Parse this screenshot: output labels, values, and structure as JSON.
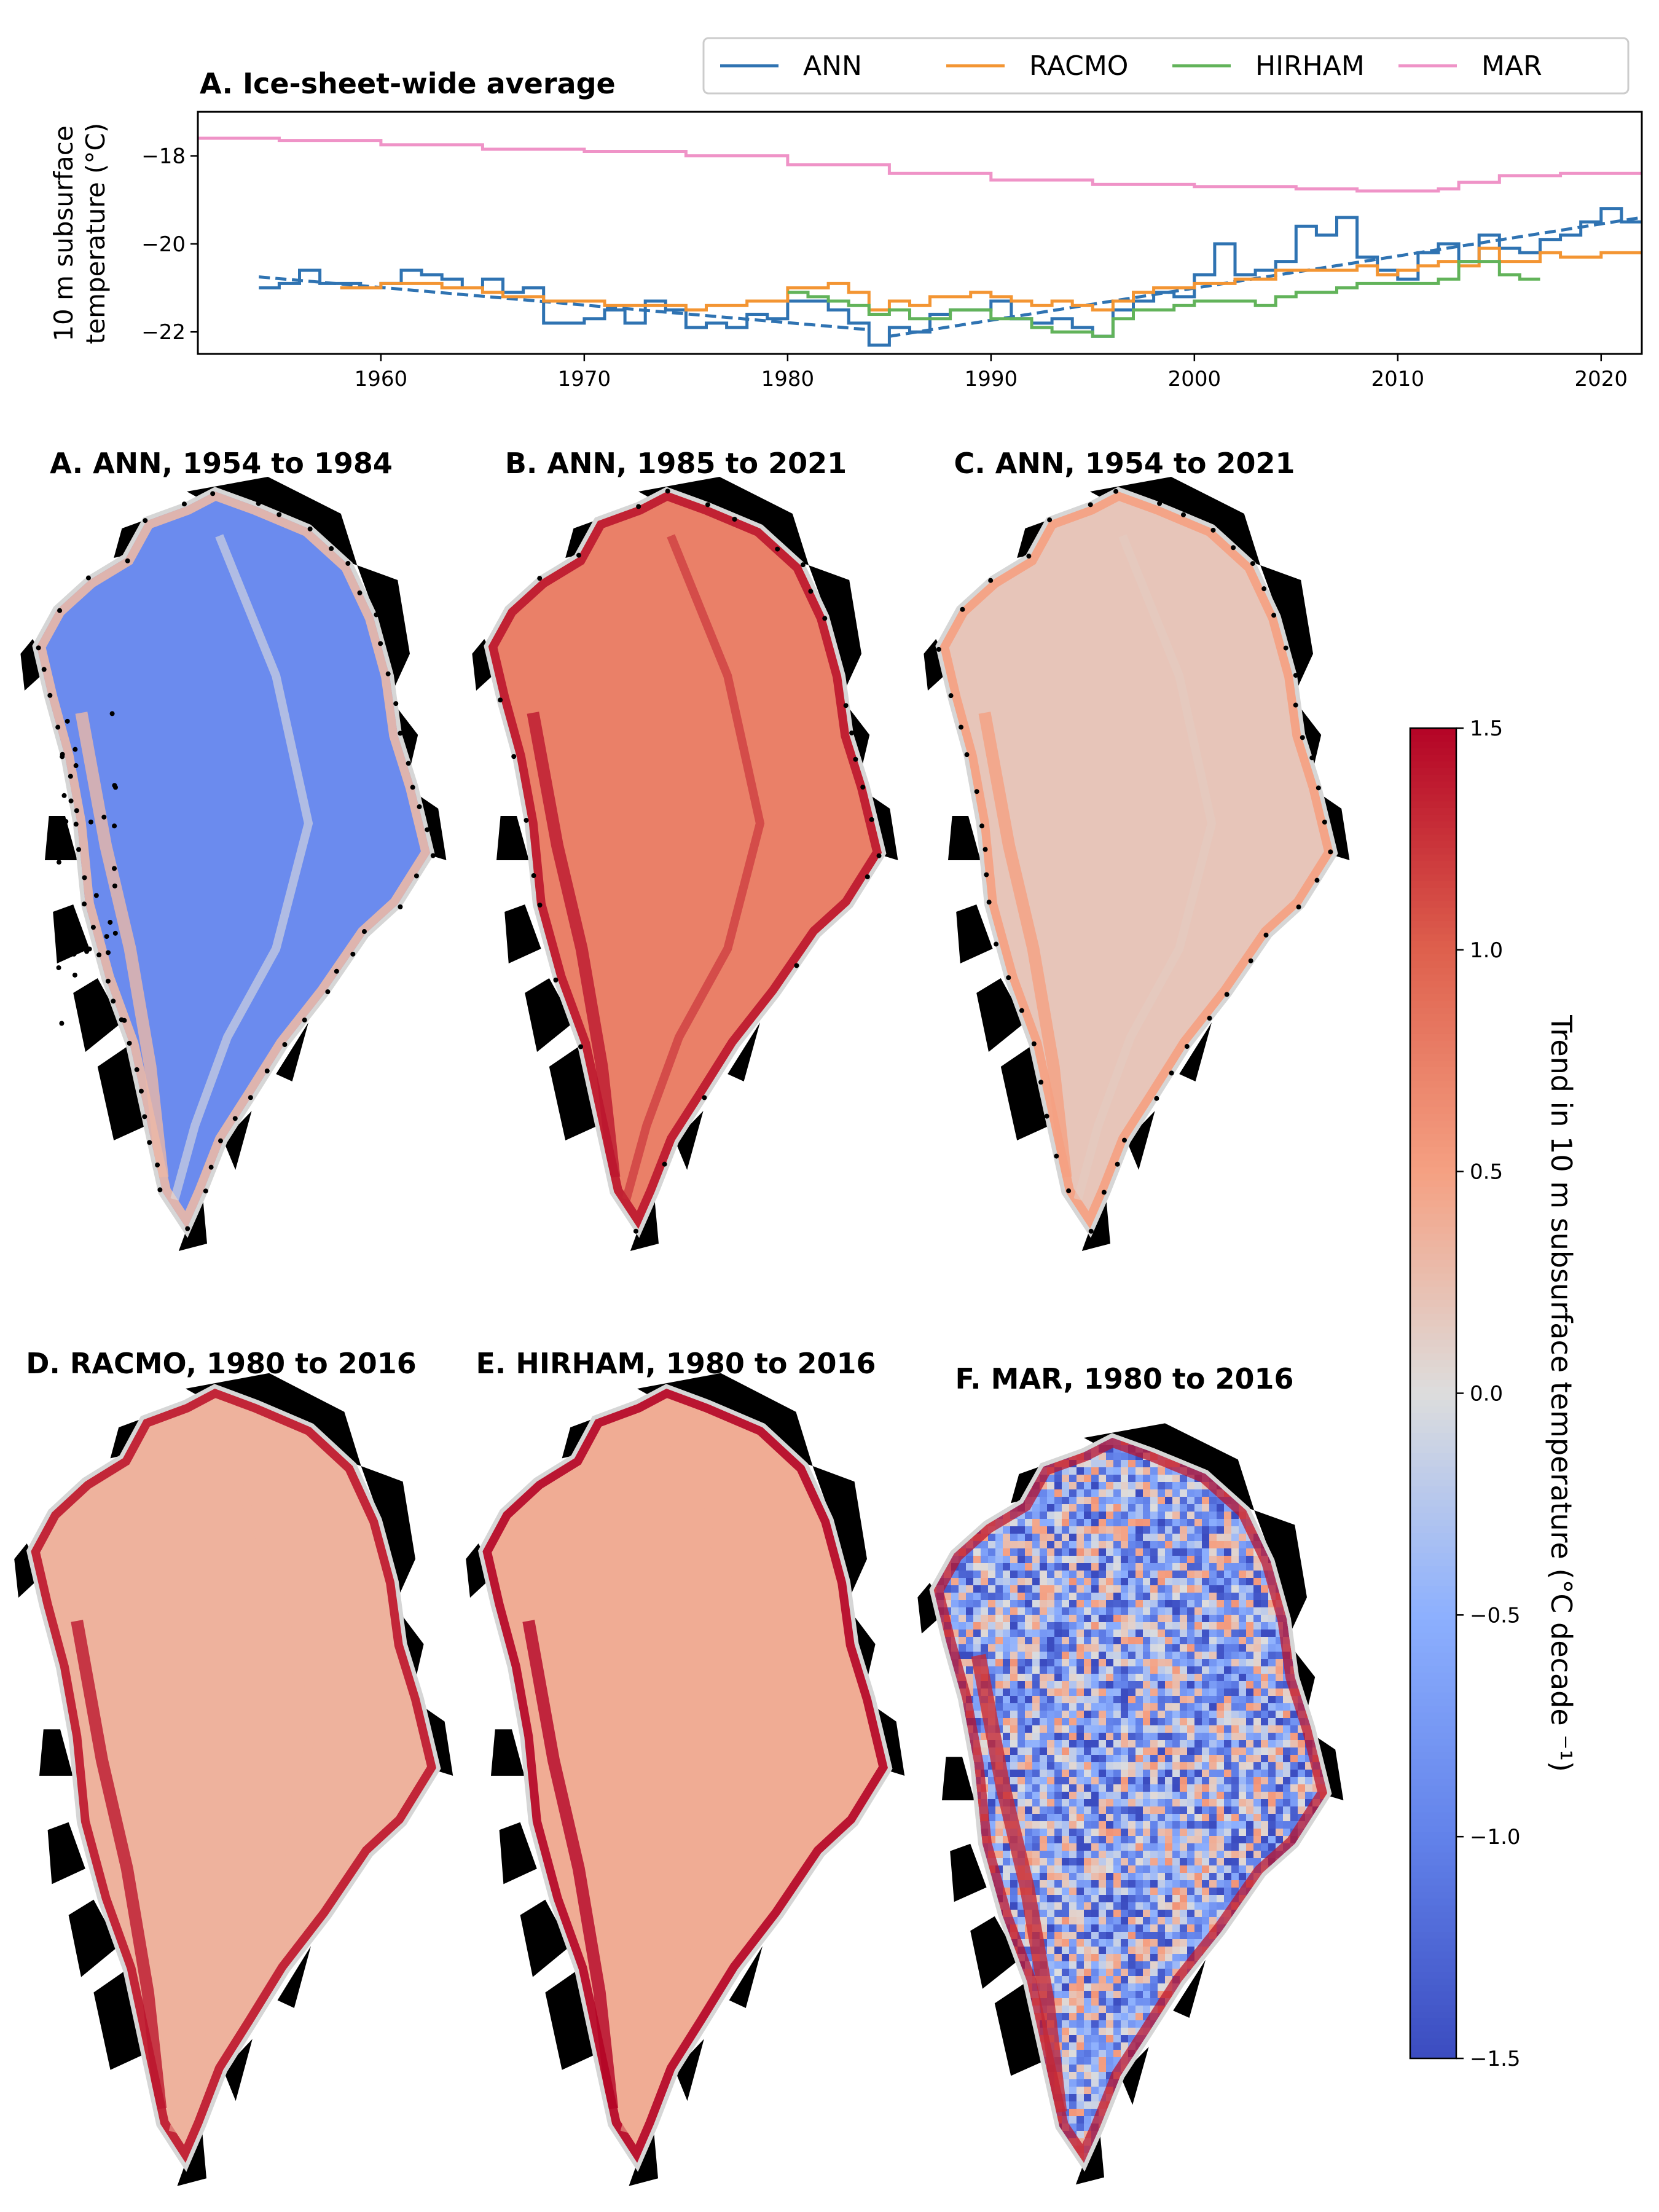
{
  "colors": {
    "ANN": "#2f73b2",
    "RACMO": "#f39533",
    "HIRHAM": "#62b35a",
    "MAR": "#ef93c7",
    "land": "#000000",
    "edge": "#d6d6d6",
    "stipple": "#000000"
  },
  "chart_data": [
    {
      "type": "line",
      "title": "A. Ice-sheet-wide average",
      "ylabel_lines": [
        "10 m subsurface",
        "temperature (°C)"
      ],
      "xlim": [
        1951,
        2022
      ],
      "ylim": [
        -22.5,
        -17.0
      ],
      "xticks": [
        1960,
        1970,
        1980,
        1990,
        2000,
        2010,
        2020
      ],
      "yticks": [
        -18,
        -20,
        -22
      ],
      "ytick_labels": [
        "−18",
        "−20",
        "−22"
      ],
      "legend": {
        "placement": "top-right, above plot",
        "entries": [
          "ANN",
          "RACMO",
          "HIRHAM",
          "MAR"
        ]
      },
      "series": [
        {
          "name": "ANN",
          "style": "step",
          "x": [
            1954,
            1955,
            1956,
            1957,
            1958,
            1959,
            1960,
            1961,
            1962,
            1963,
            1964,
            1965,
            1966,
            1967,
            1968,
            1969,
            1970,
            1971,
            1972,
            1973,
            1974,
            1975,
            1976,
            1977,
            1978,
            1979,
            1980,
            1981,
            1982,
            1983,
            1984,
            1985,
            1986,
            1987,
            1988,
            1989,
            1990,
            1991,
            1992,
            1993,
            1994,
            1995,
            1996,
            1997,
            1998,
            1999,
            2000,
            2001,
            2002,
            2003,
            2004,
            2005,
            2006,
            2007,
            2008,
            2009,
            2010,
            2011,
            2012,
            2013,
            2014,
            2015,
            2016,
            2017,
            2018,
            2019,
            2020,
            2021
          ],
          "y": [
            -21.0,
            -20.9,
            -20.6,
            -20.9,
            -20.9,
            -21.0,
            -20.9,
            -20.6,
            -20.7,
            -20.8,
            -21.0,
            -20.8,
            -21.1,
            -21.0,
            -21.8,
            -21.8,
            -21.7,
            -21.5,
            -21.8,
            -21.3,
            -21.5,
            -21.9,
            -21.8,
            -21.9,
            -21.6,
            -21.7,
            -21.3,
            -21.3,
            -21.5,
            -21.8,
            -22.3,
            -21.9,
            -22.0,
            -21.6,
            -21.5,
            -21.5,
            -21.3,
            -21.7,
            -21.8,
            -21.7,
            -21.9,
            -22.1,
            -21.5,
            -21.3,
            -21.1,
            -21.2,
            -20.7,
            -20.0,
            -20.7,
            -20.6,
            -20.4,
            -19.6,
            -19.8,
            -19.4,
            -20.3,
            -20.6,
            -20.8,
            -20.2,
            -20.0,
            -20.4,
            -19.8,
            -20.1,
            -20.2,
            -19.9,
            -19.8,
            -19.5,
            -19.2,
            -19.5
          ]
        },
        {
          "name": "ANN trend",
          "style": "dashed",
          "legend": false,
          "x": [
            1954,
            1984,
            1985,
            2022
          ],
          "y": [
            -20.75,
            -21.95,
            -22.1,
            -19.4
          ]
        },
        {
          "name": "RACMO",
          "style": "step",
          "x": [
            1958,
            1959,
            1960,
            1961,
            1962,
            1963,
            1964,
            1965,
            1966,
            1967,
            1968,
            1969,
            1970,
            1971,
            1972,
            1973,
            1974,
            1975,
            1976,
            1977,
            1978,
            1979,
            1980,
            1981,
            1982,
            1983,
            1984,
            1985,
            1986,
            1987,
            1988,
            1989,
            1990,
            1991,
            1992,
            1993,
            1994,
            1995,
            1996,
            1997,
            1998,
            1999,
            2000,
            2001,
            2002,
            2003,
            2004,
            2005,
            2006,
            2007,
            2008,
            2009,
            2010,
            2011,
            2012,
            2013,
            2014,
            2015,
            2016,
            2017,
            2018,
            2019,
            2020,
            2021
          ],
          "y": [
            -21.0,
            -21.0,
            -20.9,
            -20.9,
            -20.9,
            -21.0,
            -21.0,
            -21.1,
            -21.2,
            -21.2,
            -21.3,
            -21.3,
            -21.3,
            -21.4,
            -21.4,
            -21.4,
            -21.4,
            -21.5,
            -21.4,
            -21.4,
            -21.3,
            -21.3,
            -21.0,
            -21.0,
            -20.9,
            -21.1,
            -21.5,
            -21.3,
            -21.4,
            -21.2,
            -21.2,
            -21.1,
            -21.2,
            -21.3,
            -21.4,
            -21.3,
            -21.4,
            -21.5,
            -21.3,
            -21.1,
            -21.0,
            -21.0,
            -20.9,
            -20.9,
            -20.8,
            -20.8,
            -20.6,
            -20.6,
            -20.6,
            -20.6,
            -20.5,
            -20.7,
            -20.6,
            -20.5,
            -20.4,
            -20.5,
            -20.1,
            -20.4,
            -20.4,
            -20.2,
            -20.3,
            -20.3,
            -20.2,
            -20.2
          ]
        },
        {
          "name": "HIRHAM",
          "style": "step",
          "x": [
            1980,
            1981,
            1982,
            1983,
            1984,
            1985,
            1986,
            1987,
            1988,
            1989,
            1990,
            1991,
            1992,
            1993,
            1994,
            1995,
            1996,
            1997,
            1998,
            1999,
            2000,
            2001,
            2002,
            2003,
            2004,
            2005,
            2006,
            2007,
            2008,
            2009,
            2010,
            2011,
            2012,
            2013,
            2014,
            2015,
            2016
          ],
          "y": [
            -21.1,
            -21.2,
            -21.3,
            -21.4,
            -21.6,
            -21.5,
            -21.7,
            -21.7,
            -21.5,
            -21.5,
            -21.7,
            -21.7,
            -21.9,
            -22.0,
            -22.0,
            -22.1,
            -21.7,
            -21.5,
            -21.5,
            -21.4,
            -21.3,
            -21.3,
            -21.3,
            -21.4,
            -21.2,
            -21.1,
            -21.1,
            -21.0,
            -20.9,
            -20.9,
            -20.9,
            -20.9,
            -20.8,
            -20.4,
            -20.4,
            -20.7,
            -20.8
          ]
        },
        {
          "name": "MAR",
          "style": "step",
          "x": [
            1951,
            1955,
            1960,
            1965,
            1970,
            1975,
            1980,
            1985,
            1990,
            1995,
            2000,
            2005,
            2008,
            2012,
            2013,
            2015,
            2018,
            2022
          ],
          "y": [
            -17.6,
            -17.65,
            -17.75,
            -17.85,
            -17.9,
            -18.0,
            -18.2,
            -18.4,
            -18.55,
            -18.65,
            -18.7,
            -18.75,
            -18.8,
            -18.75,
            -18.6,
            -18.45,
            -18.4,
            -18.4
          ]
        }
      ]
    },
    {
      "type": "heatmap",
      "panels": [
        {
          "title": "A. ANN, 1954 to 1984",
          "mean_trend": -0.9,
          "margin_trend": 0.3,
          "ridge_trend": 0.0,
          "noise": 0.0,
          "stipple": "dense"
        },
        {
          "title": "B. ANN, 1985 to 2021",
          "mean_trend": 0.75,
          "margin_trend": 1.4,
          "ridge_trend": 1.3,
          "noise": 0.0,
          "stipple": "sparse"
        },
        {
          "title": "C. ANN, 1954 to 2021",
          "mean_trend": 0.2,
          "margin_trend": 0.5,
          "ridge_trend": 0.15,
          "noise": 0.0,
          "stipple": "margin"
        },
        {
          "title": "D. RACMO, 1980 to 2016",
          "mean_trend": 0.35,
          "margin_trend": 1.4,
          "ridge_trend": 0.35,
          "noise": 0.0,
          "stipple": "none"
        },
        {
          "title": "E. HIRHAM, 1980 to 2016",
          "mean_trend": 0.4,
          "margin_trend": 1.5,
          "ridge_trend": 0.4,
          "noise": 0.0,
          "stipple": "none"
        },
        {
          "title": "F. MAR, 1980 to 2016",
          "mean_trend": -0.5,
          "margin_trend": 1.4,
          "ridge_trend": 1.3,
          "noise": 1.0,
          "stipple": "none"
        }
      ],
      "colorbar": {
        "label": "Trend in 10 m subsurface temperature (°C decade ⁻¹)",
        "range": [
          -1.5,
          1.5
        ],
        "ticks": [
          1.5,
          1.0,
          0.5,
          0.0,
          -0.5,
          -1.0,
          -1.5
        ],
        "tick_labels": [
          "1.5",
          "1.0",
          "0.5",
          "0.0",
          "−0.5",
          "−1.0",
          "−1.5"
        ],
        "colormap": "coolwarm"
      }
    }
  ]
}
